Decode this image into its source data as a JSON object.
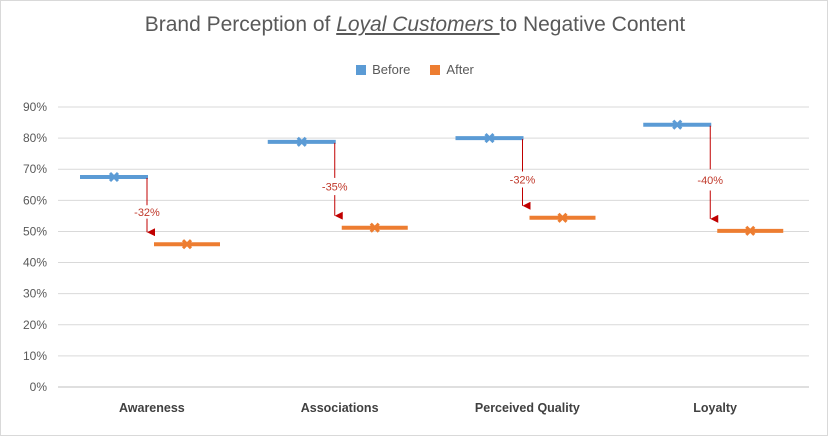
{
  "chart_data": {
    "type": "line",
    "title": {
      "prefix": "Brand Perception of ",
      "emphasis": "Loyal Customers ",
      "suffix": "to Negative Content"
    },
    "categories": [
      "Awareness",
      "Associations",
      "Perceived Quality",
      "Loyalty"
    ],
    "series": [
      {
        "name": "Before",
        "color": "#5b9bd5",
        "values": [
          67.5,
          78.8,
          80.0,
          84.3
        ]
      },
      {
        "name": "After",
        "color": "#ed7d31",
        "values": [
          45.9,
          51.2,
          54.4,
          50.2
        ]
      }
    ],
    "changes": [
      "-32%",
      "-35%",
      "-32%",
      "-40%"
    ],
    "ylim": [
      0,
      90
    ],
    "yticks": [
      "0%",
      "10%",
      "20%",
      "30%",
      "40%",
      "50%",
      "60%",
      "70%",
      "80%",
      "90%"
    ],
    "grid": true,
    "legend_position": "top",
    "arrow_color": "#c00000"
  }
}
